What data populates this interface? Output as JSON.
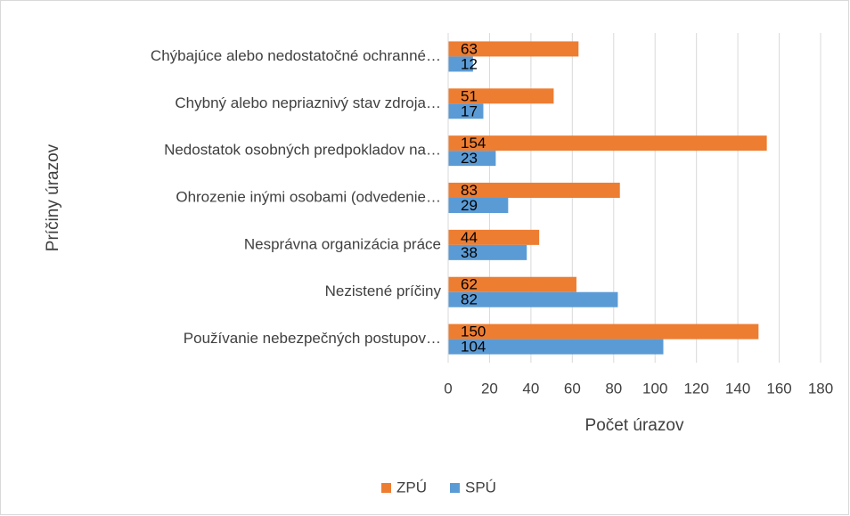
{
  "chart_data": {
    "type": "bar",
    "orientation": "horizontal",
    "x_label": "Počet úrazov",
    "y_label": "Príčiny úrazov",
    "categories": [
      "Chýbajúce alebo nedostatočné ochranné…",
      "Chybný alebo nepriaznivý stav zdroja…",
      "Nedostatok osobných predpokladov na…",
      "Ohrozenie inými osobami (odvedenie…",
      "Nesprávna organizácia práce",
      "Nezistené príčiny",
      "Používanie nebezpečných postupov…"
    ],
    "series": [
      {
        "name": "ZPÚ",
        "color": "#ED7D31",
        "values": [
          63,
          51,
          154,
          83,
          44,
          62,
          150
        ]
      },
      {
        "name": "SPÚ",
        "color": "#5B9BD5",
        "values": [
          12,
          17,
          23,
          29,
          38,
          82,
          104
        ]
      }
    ],
    "xlim": [
      0,
      180
    ],
    "xticks": [
      0,
      20,
      40,
      60,
      80,
      100,
      120,
      140,
      160,
      180
    ],
    "grid": true,
    "legend": "bottom"
  }
}
